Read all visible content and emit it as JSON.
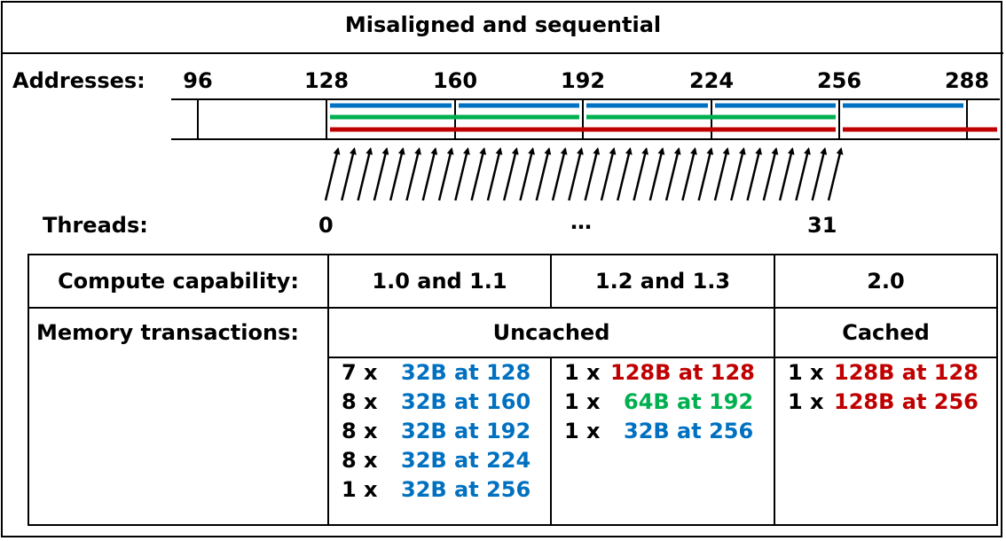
{
  "title": "Misaligned and sequential",
  "addresses": {
    "label": "Addresses:",
    "values": [
      "96",
      "128",
      "160",
      "192",
      "224",
      "256",
      "288"
    ]
  },
  "threads": {
    "label": "Threads:",
    "first": "0",
    "ellipsis": "…",
    "last": "31",
    "count": 32
  },
  "colors": {
    "blue": "#0070c0",
    "green": "#00b050",
    "red": "#c00000"
  },
  "table": {
    "capability_label": "Compute capability:",
    "cc_10_11": "1.0 and 1.1",
    "cc_12_13": "1.2 and 1.3",
    "cc_20": "2.0",
    "transactions_label": "Memory transactions:",
    "uncached": "Uncached",
    "cached": "Cached",
    "col_10_11": [
      {
        "count": "7 x",
        "size": "32B at 128",
        "color": "blue"
      },
      {
        "count": "8 x",
        "size": "32B at 160",
        "color": "blue"
      },
      {
        "count": "8 x",
        "size": "32B at 192",
        "color": "blue"
      },
      {
        "count": "8 x",
        "size": "32B at 224",
        "color": "blue"
      },
      {
        "count": "1 x",
        "size": "32B at 256",
        "color": "blue"
      }
    ],
    "col_12_13": [
      {
        "count": "1 x",
        "size": "128B at 128",
        "color": "red"
      },
      {
        "count": "1 x",
        "size": "64B at 192",
        "color": "green"
      },
      {
        "count": "1 x",
        "size": "32B at 256",
        "color": "blue"
      }
    ],
    "col_20": [
      {
        "count": "1 x",
        "size": "128B at 128",
        "color": "red"
      },
      {
        "count": "1 x",
        "size": "128B at 256",
        "color": "red"
      }
    ]
  }
}
